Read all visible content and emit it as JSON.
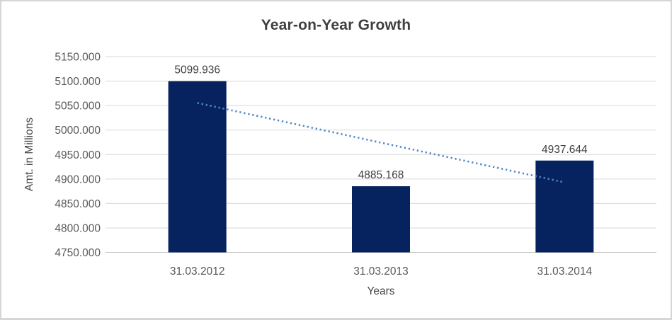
{
  "chart_data": {
    "type": "bar",
    "title": "Year-on-Year Growth",
    "xlabel": "Years",
    "ylabel": "Amt. in Millions",
    "categories": [
      "31.03.2012",
      "31.03.2013",
      "31.03.2014"
    ],
    "values": [
      5099.936,
      4885.168,
      4937.644
    ],
    "data_label_decimals": 3,
    "ylim": [
      4750,
      5150
    ],
    "ytick_step": 50,
    "ytick_decimals": 3,
    "grid": true,
    "legend": "none",
    "trendline": {
      "type": "linear",
      "style": "dotted",
      "span": "first-to-last-category"
    }
  },
  "colors": {
    "bar": "#062360",
    "trendline": "#5288cc",
    "gridline": "#d9d9d9",
    "axis_line": "#c6c6c6",
    "title_text": "#3f3f3f",
    "tick_text": "#595959",
    "data_label_text": "#404040",
    "border": "#d6d6d6",
    "background": "#ffffff"
  }
}
